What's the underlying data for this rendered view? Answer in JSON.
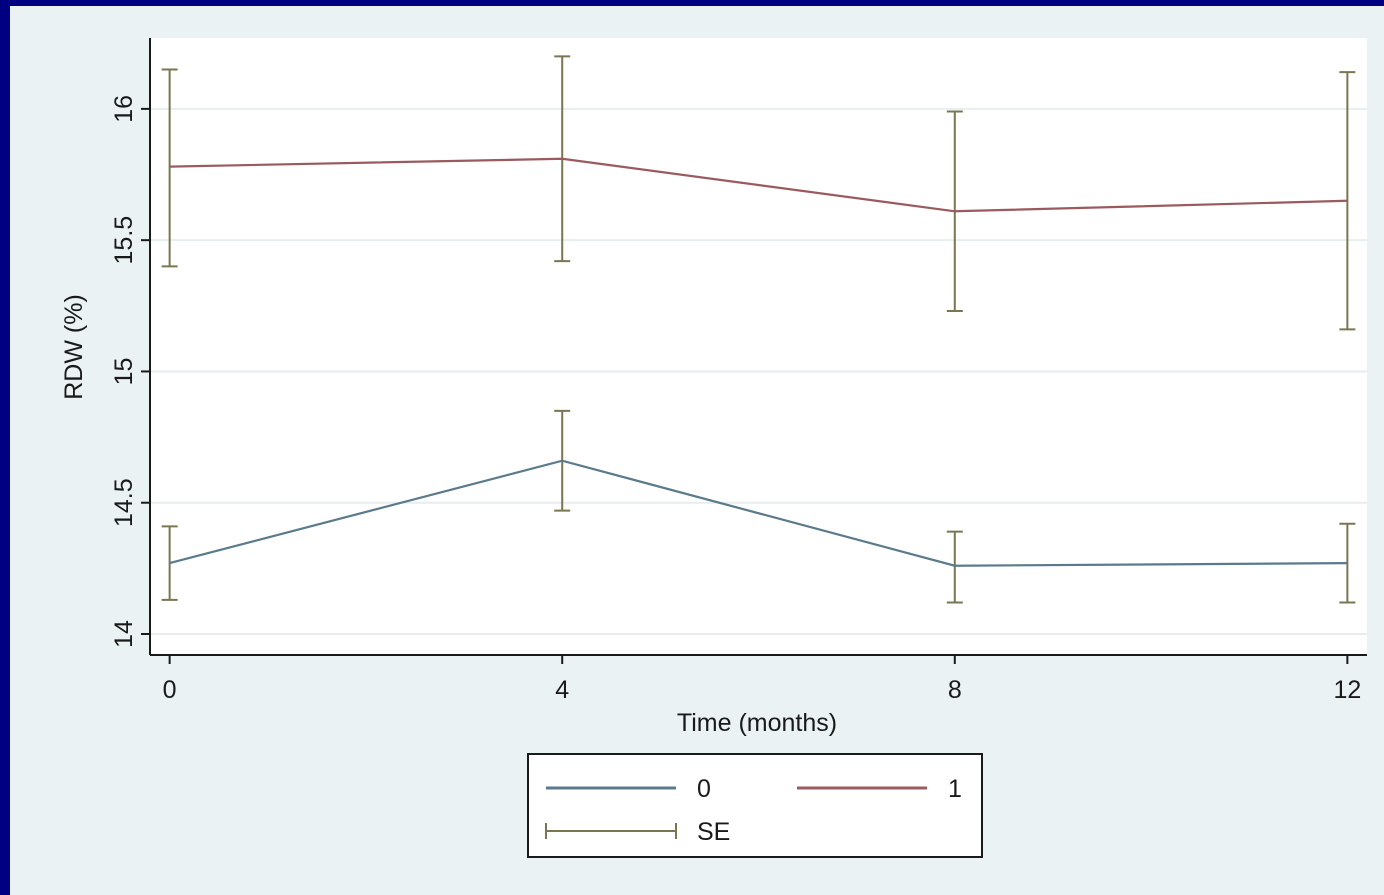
{
  "chart_data": {
    "type": "line",
    "xlabel": "Time (months)",
    "ylabel": "RDW (%)",
    "x": [
      0,
      4,
      8,
      12
    ],
    "xticks": [
      "0",
      "4",
      "8",
      "12"
    ],
    "yticks": [
      "14",
      "14.5",
      "15",
      "15.5",
      "16"
    ],
    "xlim": [
      -0.2,
      12.2
    ],
    "ylim": [
      13.92,
      16.27
    ],
    "grid": true,
    "legend_position": "bottom-center",
    "series": [
      {
        "name": "0",
        "color": "#5b7a8c",
        "values": [
          14.27,
          14.66,
          14.26,
          14.27
        ],
        "se_low": [
          14.13,
          14.47,
          14.12,
          14.12
        ],
        "se_high": [
          14.41,
          14.85,
          14.39,
          14.42
        ]
      },
      {
        "name": "1",
        "color": "#9a5a5e",
        "values": [
          15.78,
          15.81,
          15.61,
          15.65
        ],
        "se_low": [
          15.4,
          15.42,
          15.23,
          15.16
        ],
        "se_high": [
          16.15,
          16.2,
          15.99,
          16.14
        ]
      }
    ],
    "errorbar_label": "SE",
    "errorbar_color": "#7a7652"
  }
}
